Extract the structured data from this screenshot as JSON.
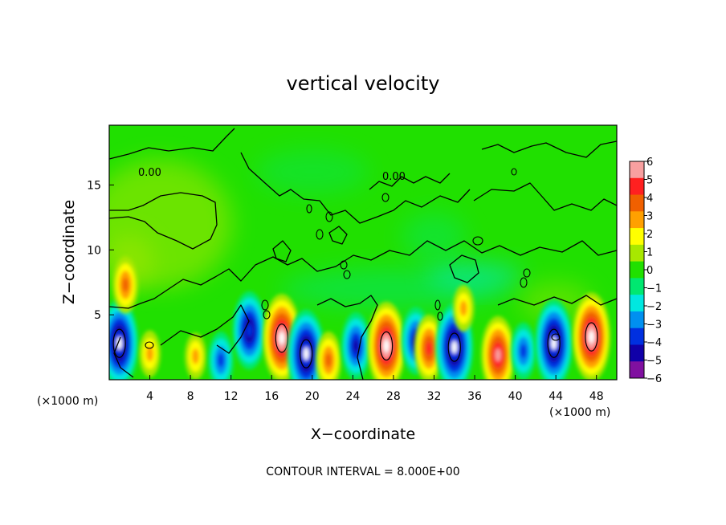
{
  "chart_data": {
    "type": "heatmap",
    "title": "vertical velocity",
    "xlabel": "X−coordinate",
    "ylabel": "Z−coordinate",
    "x_unit_label_left": "(×1000 m)",
    "x_unit_label_right": "(×1000 m)",
    "footer": "CONTOUR INTERVAL = 8.000E+00",
    "contour_label": "0.00",
    "xlim": [
      0,
      50
    ],
    "ylim": [
      0,
      19.6
    ],
    "x_ticks": [
      4,
      8,
      12,
      16,
      20,
      24,
      28,
      32,
      36,
      40,
      44,
      48
    ],
    "y_ticks": [
      5,
      10,
      15
    ],
    "colorbar": {
      "labels": [
        "6",
        "5",
        "4",
        "3",
        "2",
        "1",
        "0",
        "−1",
        "−2",
        "−3",
        "−4",
        "−5",
        "−6"
      ],
      "colors": [
        "#f8a0a0",
        "#ff2020",
        "#f06000",
        "#ffa000",
        "#ffff00",
        "#a8e800",
        "#20e000",
        "#00e870",
        "#00e8e0",
        "#0090f0",
        "#0030e0",
        "#1000a8",
        "#8010a0"
      ],
      "range": [
        -6,
        6
      ]
    },
    "features": [
      {
        "x": 1.0,
        "z": 2.8,
        "sign": "down",
        "peak": -6
      },
      {
        "x": 1.6,
        "z": 7.3,
        "sign": "up",
        "peak": 3
      },
      {
        "x": 4.0,
        "z": 2.0,
        "sign": "up",
        "peak": 2
      },
      {
        "x": 8.5,
        "z": 1.8,
        "sign": "up",
        "peak": 2
      },
      {
        "x": 11.0,
        "z": 1.5,
        "sign": "down",
        "peak": -3
      },
      {
        "x": 13.8,
        "z": 3.8,
        "sign": "down",
        "peak": -5
      },
      {
        "x": 17.0,
        "z": 3.2,
        "sign": "up",
        "peak": 6
      },
      {
        "x": 19.4,
        "z": 2.0,
        "sign": "down",
        "peak": -6
      },
      {
        "x": 21.6,
        "z": 1.5,
        "sign": "up",
        "peak": 3
      },
      {
        "x": 24.3,
        "z": 2.6,
        "sign": "down",
        "peak": -4
      },
      {
        "x": 27.3,
        "z": 2.6,
        "sign": "up",
        "peak": 6
      },
      {
        "x": 30.2,
        "z": 3.0,
        "sign": "down",
        "peak": -4
      },
      {
        "x": 31.5,
        "z": 2.4,
        "sign": "up",
        "peak": 4
      },
      {
        "x": 34.0,
        "z": 2.5,
        "sign": "down",
        "peak": -6
      },
      {
        "x": 34.9,
        "z": 5.5,
        "sign": "up",
        "peak": 2
      },
      {
        "x": 38.3,
        "z": 1.9,
        "sign": "up",
        "peak": 5
      },
      {
        "x": 40.8,
        "z": 2.2,
        "sign": "down",
        "peak": -3
      },
      {
        "x": 43.8,
        "z": 2.8,
        "sign": "down",
        "peak": -6
      },
      {
        "x": 47.5,
        "z": 3.3,
        "sign": "up",
        "peak": 6
      }
    ]
  }
}
